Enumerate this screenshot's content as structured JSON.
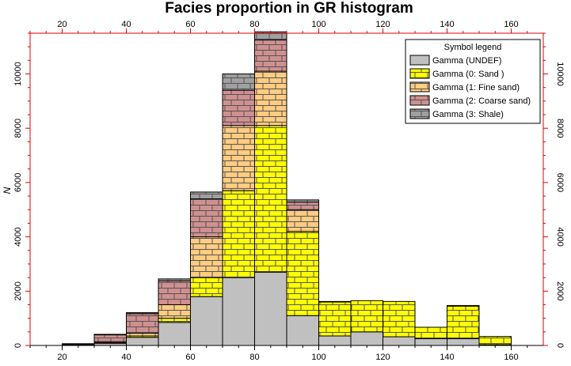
{
  "chart_data": {
    "type": "bar",
    "title": "Facies proportion in GR histogram",
    "ylabel": "N",
    "xlabel": "",
    "xlim": [
      10,
      170
    ],
    "ylim": [
      0,
      11500
    ],
    "x_ticks": [
      20,
      40,
      60,
      80,
      100,
      120,
      140,
      160
    ],
    "y_ticks": [
      0,
      2000,
      4000,
      6000,
      8000,
      10000
    ],
    "stacked": true,
    "bin_edges": [
      20,
      30,
      40,
      50,
      60,
      70,
      80,
      90,
      100,
      110,
      120,
      130,
      140,
      150,
      160
    ],
    "legend": {
      "title": "Symbol legend",
      "position": "top-right"
    },
    "series": [
      {
        "name": "Gamma (UNDEF)",
        "color": "#c0c0c0",
        "pattern": "none",
        "values": [
          20,
          80,
          300,
          850,
          1800,
          2500,
          2700,
          1100,
          350,
          500,
          320,
          250,
          250,
          30
        ]
      },
      {
        "name": "Gamma (0: Sand )",
        "color": "#ffff00",
        "pattern": "brick",
        "values": [
          10,
          20,
          50,
          150,
          700,
          3200,
          5400,
          3100,
          1250,
          1150,
          1300,
          420,
          1200,
          300
        ]
      },
      {
        "name": "Gamma (1: Fine sand)",
        "color": "#ffcc80",
        "pattern": "brick",
        "values": [
          5,
          40,
          100,
          500,
          1500,
          2400,
          2000,
          800,
          20,
          0,
          0,
          0,
          20,
          0
        ]
      },
      {
        "name": "Gamma (2: Coarse sand)",
        "color": "#d09090",
        "pattern": "brick",
        "values": [
          30,
          250,
          720,
          880,
          1400,
          1300,
          1150,
          280,
          0,
          0,
          0,
          0,
          0,
          0
        ]
      },
      {
        "name": "Gamma (3: Shale)",
        "color": "#a0a0a0",
        "pattern": "brick",
        "values": [
          0,
          20,
          40,
          70,
          250,
          600,
          300,
          80,
          0,
          0,
          0,
          0,
          0,
          0
        ]
      }
    ]
  }
}
